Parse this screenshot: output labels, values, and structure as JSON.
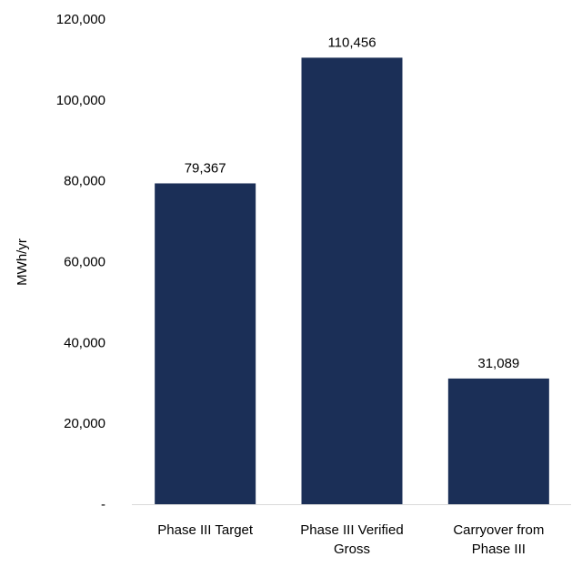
{
  "chart_data": {
    "type": "bar",
    "categories": [
      [
        "Phase III Target"
      ],
      [
        "Phase III Verified",
        "Gross"
      ],
      [
        "Carryover from",
        "Phase III"
      ]
    ],
    "values": [
      79367,
      110456,
      31089
    ],
    "data_labels": [
      "79,367",
      "110,456",
      "31,089"
    ],
    "title": "",
    "xlabel": "",
    "ylabel": "MWh/yr",
    "ylim": [
      0,
      120000
    ],
    "yticks": [
      0,
      20000,
      40000,
      60000,
      80000,
      100000,
      120000
    ],
    "ytick_labels": [
      "-",
      "20,000",
      "40,000",
      "60,000",
      "80,000",
      "100,000",
      "120,000"
    ],
    "grid": false,
    "legend": "none",
    "bar_color": "#1b2f57",
    "axis_color": "#d9d9d9"
  }
}
